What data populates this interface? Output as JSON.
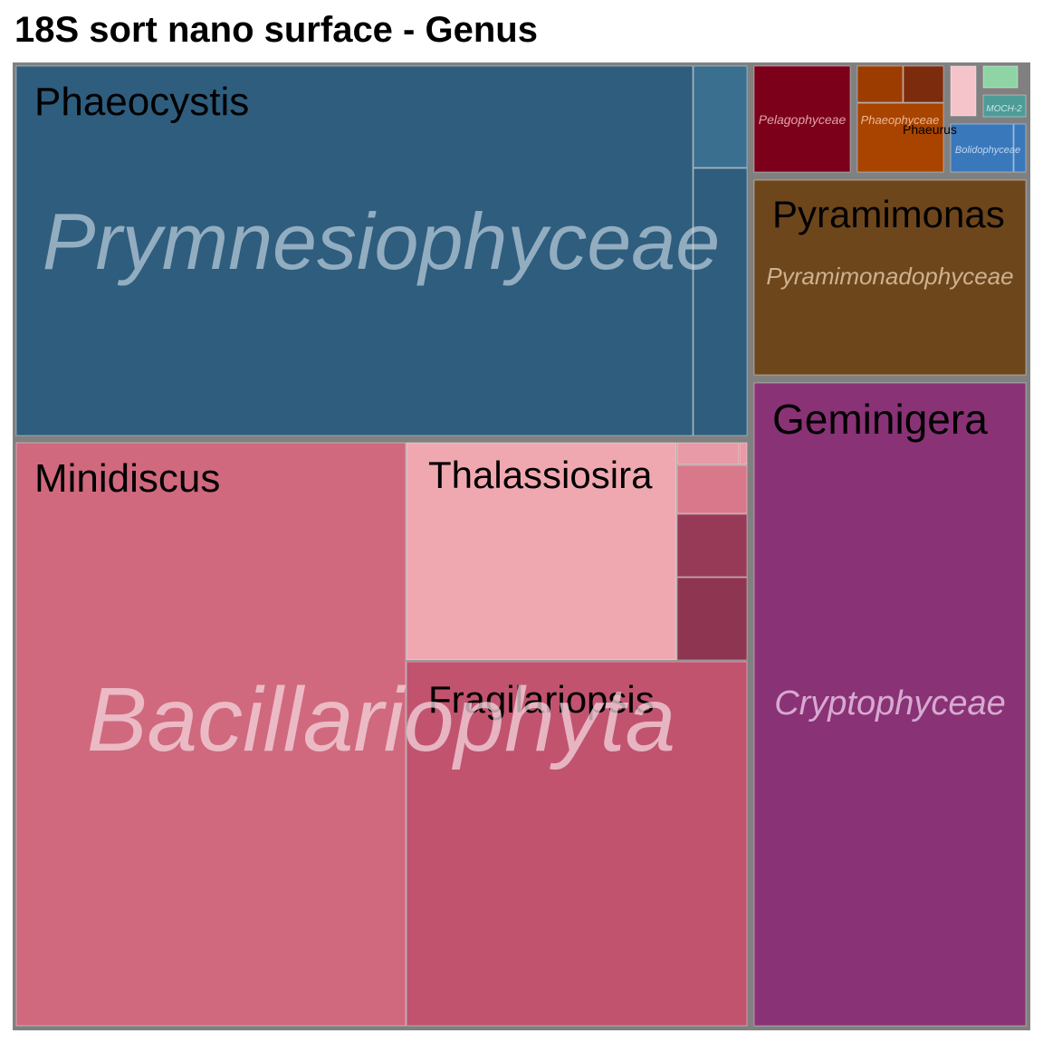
{
  "chart_data": {
    "type": "treemap",
    "title": "18S sort nano surface - Genus",
    "groups": [
      {
        "name": "Prymnesiophyceae",
        "color": "#2e5d7e",
        "children": [
          {
            "name": "Phaeocystis",
            "value": 33.7,
            "color": "#2e5d7e"
          },
          {
            "name": "",
            "value": 0.75,
            "color": "#3a6f90"
          },
          {
            "name": "",
            "value": 2.2,
            "color": "#2e5d7e"
          }
        ]
      },
      {
        "name": "Bacillariophyta",
        "color": "#d0697e",
        "children": [
          {
            "name": "Minidiscus",
            "value": 30.4,
            "color": "#d0697e"
          },
          {
            "name": "Thalassiosira",
            "value": 11.8,
            "color": "#f0a8b0"
          },
          {
            "name": "Fragilariopsis",
            "value": 15.3,
            "color": "#c1536f"
          },
          {
            "name": "",
            "value": 0.1,
            "color": "#e89aa6"
          },
          {
            "name": "",
            "value": 0.08,
            "color": "#e89aa6"
          },
          {
            "name": "",
            "value": 0.45,
            "color": "#d8788a"
          },
          {
            "name": "",
            "value": 0.55,
            "color": "#963a58"
          },
          {
            "name": "",
            "value": 0.75,
            "color": "#8e3552"
          }
        ]
      },
      {
        "name": "Cryptophyceae",
        "color": "#8a3276",
        "children": [
          {
            "name": "Geminigera",
            "value": 16.3,
            "color": "#8a3276"
          }
        ]
      },
      {
        "name": "Pyramimonadophyceae",
        "color": "#6e461c",
        "children": [
          {
            "name": "Pyramimonas",
            "value": 4.8,
            "color": "#6e461c"
          }
        ]
      },
      {
        "name": "Pelagophyceae",
        "color": "#7c0019",
        "children": [
          {
            "name": "",
            "value": 1.3,
            "color": "#7c0019"
          }
        ]
      },
      {
        "name": "Phaeophyceae",
        "color": "#a84400",
        "children": [
          {
            "name": "Phaeurus",
            "value": 0.75,
            "color": "#a84400"
          },
          {
            "name": "",
            "value": 0.2,
            "color": "#9c3c00"
          },
          {
            "name": "",
            "value": 0.2,
            "color": "#7c2c0c"
          }
        ]
      },
      {
        "name": "",
        "color": "#f4c4ca",
        "children": [
          {
            "name": "",
            "value": 0.18,
            "color": "#f4c4ca"
          }
        ]
      },
      {
        "name": "",
        "color": "#8ed4a4",
        "children": [
          {
            "name": "",
            "value": 0.12,
            "color": "#8ed4a4"
          }
        ]
      },
      {
        "name": "MOCH-2",
        "color": "#4e9c98",
        "children": [
          {
            "name": "",
            "value": 0.12,
            "color": "#4e9c98"
          }
        ]
      },
      {
        "name": "Bolidophyceae",
        "color": "#3a78bc",
        "children": [
          {
            "name": "",
            "value": 0.35,
            "color": "#3a78bc"
          },
          {
            "name": "",
            "value": 0.08,
            "color": "#3a78bc"
          }
        ]
      }
    ]
  }
}
